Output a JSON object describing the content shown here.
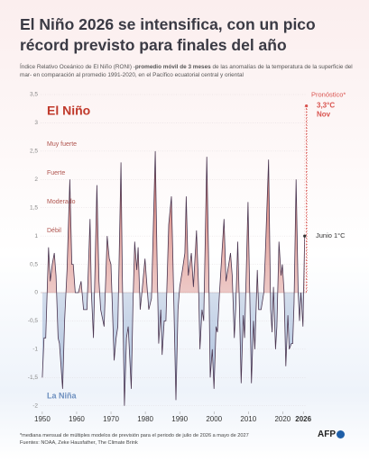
{
  "chart_data": {
    "type": "line",
    "title": "El Niño 2026 se intensifica, con un pico récord previsto para finales del año",
    "subtitle": [
      {
        "text": "Índice Relativo Oceánico de El Niño (RONI) -",
        "bold": false
      },
      {
        "text": "promedio móvil de 3 meses",
        "bold": true
      },
      {
        "text": " de las anomalías de la temperatura de la superficie del mar- en comparación al promedio 1991-2020, en el Pacífico ecuatorial central y oriental",
        "bold": false
      }
    ],
    "region_labels": [
      "El Niño",
      "La Niña"
    ],
    "strength_labels": [
      "Muy fuerte",
      "Fuerte",
      "Moderado",
      "Débil"
    ],
    "x": [
      1950.0,
      1950.5,
      1951.0,
      1951.8,
      1952.3,
      1952.9,
      1953.5,
      1954.0,
      1954.6,
      1955.0,
      1955.9,
      1956.5,
      1957.2,
      1958.0,
      1958.6,
      1959.0,
      1959.6,
      1960.5,
      1961.3,
      1962.0,
      1963.0,
      1963.9,
      1964.3,
      1964.9,
      1965.9,
      1966.5,
      1967.0,
      1968.0,
      1968.9,
      1969.5,
      1970.0,
      1970.9,
      1971.5,
      1972.0,
      1972.9,
      1973.3,
      1973.9,
      1974.5,
      1975.0,
      1975.9,
      1976.4,
      1976.9,
      1977.5,
      1977.9,
      1978.5,
      1979.0,
      1979.9,
      1980.5,
      1981.0,
      1981.8,
      1982.9,
      1983.5,
      1983.9,
      1984.5,
      1984.9,
      1985.5,
      1986.0,
      1986.8,
      1987.6,
      1988.0,
      1988.9,
      1989.5,
      1990.0,
      1990.8,
      1991.5,
      1991.9,
      1992.5,
      1993.4,
      1994.0,
      1994.9,
      1995.5,
      1995.9,
      1996.5,
      1997.0,
      1997.9,
      1998.4,
      1998.9,
      1999.5,
      2000.0,
      2000.6,
      2001.0,
      2001.6,
      2002.9,
      2003.5,
      2004.0,
      2004.8,
      2005.3,
      2005.9,
      2006.3,
      2006.9,
      2007.3,
      2007.9,
      2008.5,
      2008.9,
      2009.9,
      2010.4,
      2010.9,
      2011.5,
      2011.9,
      2012.6,
      2013.0,
      2013.7,
      2014.5,
      2014.9,
      2015.9,
      2016.5,
      2016.9,
      2017.3,
      2017.9,
      2018.3,
      2018.9,
      2019.5,
      2019.9,
      2020.4,
      2020.9,
      2021.5,
      2021.9,
      2022.5,
      2022.9,
      2023.3,
      2023.9,
      2024.5,
      2024.9,
      2025.3,
      2025.9,
      2026.4
    ],
    "series": [
      {
        "name": "RONI",
        "color": "#4a3550",
        "values": [
          -1.5,
          -0.8,
          -0.8,
          0.8,
          0.2,
          0.5,
          0.7,
          0.3,
          -0.8,
          -0.9,
          -1.7,
          -0.5,
          0.4,
          2.0,
          0.5,
          0.5,
          0.0,
          0.0,
          0.2,
          -0.3,
          -0.3,
          1.3,
          0.0,
          -0.8,
          1.9,
          0.2,
          -0.3,
          -0.6,
          1.0,
          0.6,
          0.5,
          -1.2,
          -0.8,
          -0.6,
          2.3,
          0.3,
          -2.0,
          -0.8,
          -0.6,
          -1.7,
          -0.2,
          0.9,
          0.4,
          0.8,
          -0.3,
          0.0,
          0.6,
          0.1,
          -0.3,
          -0.1,
          2.5,
          0.3,
          -0.9,
          -0.3,
          -1.1,
          -0.5,
          -0.5,
          1.2,
          1.7,
          0.7,
          -1.9,
          -0.3,
          0.1,
          0.4,
          0.7,
          1.7,
          0.3,
          0.7,
          0.1,
          1.1,
          0.1,
          -1.0,
          -0.3,
          -0.5,
          2.4,
          0.7,
          -1.5,
          -1.0,
          -1.7,
          -0.6,
          -0.7,
          0.0,
          1.3,
          0.2,
          0.4,
          0.7,
          0.3,
          -0.8,
          -0.3,
          0.9,
          0.0,
          -1.6,
          -0.4,
          -0.8,
          1.6,
          0.0,
          -1.6,
          -0.5,
          -1.0,
          0.4,
          -0.3,
          -0.3,
          0.0,
          0.6,
          2.35,
          -0.3,
          -0.7,
          0.1,
          -1.0,
          -0.6,
          0.9,
          0.3,
          0.5,
          0.0,
          -1.3,
          -0.4,
          -1.0,
          -0.9,
          -0.9,
          -0.2,
          2.0,
          0.0,
          -0.5,
          0.0,
          -0.6,
          1.0
        ]
      }
    ],
    "forecast": {
      "name": "Pronóstico*",
      "color": "#d9534f",
      "x": [
        2026.4,
        2026.9
      ],
      "values": [
        1.0,
        3.3
      ],
      "value_labels": [
        "Junio 1°C",
        "3,3°C"
      ],
      "month_label": "Nov"
    },
    "xlim": [
      1949.5,
      2027
    ],
    "ylim": [
      -2.1,
      3.5
    ],
    "xticks": [
      1950,
      1960,
      1970,
      1980,
      1990,
      2000,
      2010,
      2020,
      2026
    ],
    "yticks": [
      {
        "value": -2,
        "label": "-2"
      },
      {
        "value": -1.5,
        "label": "-1,5"
      },
      {
        "value": -1,
        "label": "-1"
      },
      {
        "value": -0.5,
        "label": "-0,5"
      },
      0,
      {
        "value": 0.5,
        "label": "0,5"
      },
      1,
      {
        "value": 1.5,
        "label": "1,5"
      },
      2,
      {
        "value": 2.5,
        "label": "2,5"
      },
      3,
      {
        "value": 3.5,
        "label": "3,5"
      }
    ],
    "grid": true,
    "footnote": "*mediana mensual de múltiples modelos de previsión para el periodo de julio de 2026 a mayo de 2027",
    "sources": "Fuentes: NOAA, Zeke Hausfather, The Climate Brink",
    "logo": "AFP"
  }
}
